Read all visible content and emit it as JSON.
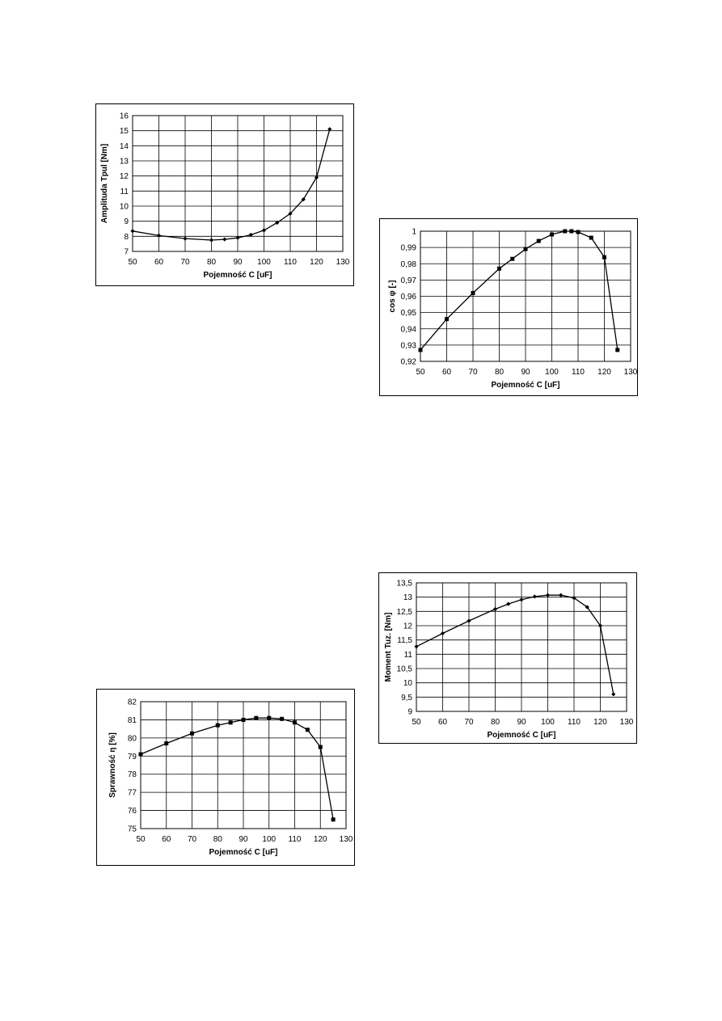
{
  "chart_data": [
    {
      "id": "tpul",
      "type": "line",
      "marker": "diamond",
      "title": "",
      "xlabel": "Pojemność C [uF]",
      "ylabel": "Amplituda Tpul [Nm]",
      "xlim": [
        50,
        130
      ],
      "ylim": [
        7,
        16
      ],
      "xticks": [
        "50",
        "60",
        "70",
        "80",
        "90",
        "100",
        "110",
        "120",
        "130"
      ],
      "yticks": [
        "7",
        "8",
        "9",
        "10",
        "11",
        "12",
        "13",
        "14",
        "15",
        "16"
      ],
      "grid": true,
      "series": [
        {
          "x": [
            50,
            60,
            70,
            80,
            85,
            90,
            95,
            100,
            105,
            110,
            115,
            120,
            125
          ],
          "values": [
            8.35,
            8.05,
            7.85,
            7.75,
            7.8,
            7.9,
            8.1,
            8.4,
            8.9,
            9.5,
            10.45,
            11.9,
            15.1
          ]
        }
      ]
    },
    {
      "id": "cosphi",
      "type": "line",
      "marker": "square",
      "title": "",
      "xlabel": "Pojemność C [uF]",
      "ylabel": "cos φ [-]",
      "xlim": [
        50,
        130
      ],
      "ylim": [
        0.92,
        1.0
      ],
      "xticks": [
        "50",
        "60",
        "70",
        "80",
        "90",
        "100",
        "110",
        "120",
        "130"
      ],
      "yticks": [
        "0,92",
        "0,93",
        "0,94",
        "0,95",
        "0,96",
        "0,97",
        "0,98",
        "0,99",
        "1"
      ],
      "grid": true,
      "series": [
        {
          "x": [
            50,
            60,
            70,
            80,
            85,
            90,
            95,
            100,
            105,
            107.5,
            110,
            115,
            120,
            125
          ],
          "values": [
            0.927,
            0.946,
            0.962,
            0.977,
            0.983,
            0.989,
            0.994,
            0.998,
            1.0,
            1.0,
            0.9995,
            0.996,
            0.984,
            0.927
          ]
        }
      ]
    },
    {
      "id": "eta",
      "type": "line",
      "marker": "square",
      "title": "",
      "xlabel": "Pojemność C [uF]",
      "ylabel": "Sprawność η [%]",
      "xlim": [
        50,
        130
      ],
      "ylim": [
        75,
        82
      ],
      "xticks": [
        "50",
        "60",
        "70",
        "80",
        "90",
        "100",
        "110",
        "120",
        "130"
      ],
      "yticks": [
        "75",
        "76",
        "77",
        "78",
        "79",
        "80",
        "81",
        "82"
      ],
      "grid": true,
      "series": [
        {
          "x": [
            50,
            60,
            70,
            80,
            85,
            90,
            95,
            100,
            105,
            110,
            115,
            120,
            125
          ],
          "values": [
            79.1,
            79.7,
            80.25,
            80.7,
            80.85,
            81.0,
            81.1,
            81.1,
            81.05,
            80.85,
            80.45,
            79.5,
            75.5
          ]
        }
      ]
    },
    {
      "id": "tuz",
      "type": "line",
      "marker": "diamond",
      "title": "",
      "xlabel": "Pojemność C [uF]",
      "ylabel": "Moment Tuz. [Nm]",
      "xlim": [
        50,
        130
      ],
      "ylim": [
        9,
        13.5
      ],
      "xticks": [
        "50",
        "60",
        "70",
        "80",
        "90",
        "100",
        "110",
        "120",
        "130"
      ],
      "yticks": [
        "9",
        "9,5",
        "10",
        "10,5",
        "11",
        "11,5",
        "12",
        "12,5",
        "13",
        "13,5"
      ],
      "grid": true,
      "series": [
        {
          "x": [
            50,
            60,
            70,
            80,
            85,
            90,
            95,
            100,
            105,
            110,
            115,
            120,
            125
          ],
          "values": [
            11.27,
            11.73,
            12.17,
            12.58,
            12.76,
            12.91,
            13.02,
            13.07,
            13.07,
            12.97,
            12.65,
            12.0,
            9.6
          ]
        }
      ]
    }
  ]
}
